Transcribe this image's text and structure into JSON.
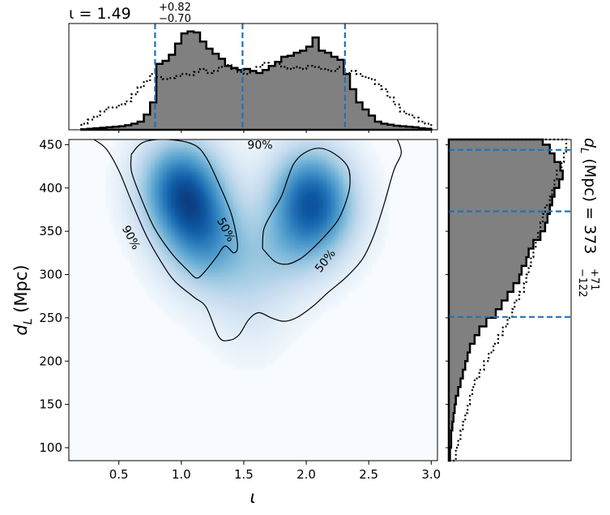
{
  "chart_data": [
    {
      "panel": "top-marginal",
      "type": "step-histogram",
      "title": {
        "symbol": "ι",
        "eq": " = ",
        "value": "1.49",
        "upper": "+0.82",
        "lower": "−0.70"
      },
      "xlim": [
        0.1,
        3.05
      ],
      "bin_edges": [
        0.2,
        0.25,
        0.3,
        0.35,
        0.4,
        0.45,
        0.5,
        0.55,
        0.6,
        0.65,
        0.7,
        0.75,
        0.8,
        0.85,
        0.9,
        0.95,
        1.0,
        1.05,
        1.1,
        1.15,
        1.2,
        1.25,
        1.3,
        1.35,
        1.4,
        1.45,
        1.5,
        1.55,
        1.6,
        1.65,
        1.7,
        1.75,
        1.8,
        1.85,
        1.9,
        1.95,
        2.0,
        2.05,
        2.1,
        2.15,
        2.2,
        2.25,
        2.3,
        2.35,
        2.4,
        2.45,
        2.5,
        2.55,
        2.6,
        2.65,
        2.7,
        2.75,
        2.8,
        2.85,
        2.9,
        2.95,
        3.0
      ],
      "series": [
        {
          "style": "filled-gray",
          "values": [
            0.005,
            0.01,
            0.015,
            0.02,
            0.025,
            0.03,
            0.035,
            0.045,
            0.06,
            0.08,
            0.15,
            0.27,
            0.65,
            0.68,
            0.74,
            0.85,
            0.95,
            0.97,
            0.96,
            0.87,
            0.8,
            0.75,
            0.7,
            0.63,
            0.61,
            0.59,
            0.6,
            0.58,
            0.56,
            0.59,
            0.63,
            0.67,
            0.72,
            0.73,
            0.76,
            0.78,
            0.82,
            0.91,
            0.78,
            0.76,
            0.72,
            0.69,
            0.55,
            0.4,
            0.27,
            0.2,
            0.14,
            0.08,
            0.06,
            0.05,
            0.04,
            0.035,
            0.03,
            0.025,
            0.015,
            0.01
          ]
        },
        {
          "style": "dotted-black",
          "values": [
            0.06,
            0.1,
            0.13,
            0.18,
            0.22,
            0.22,
            0.25,
            0.28,
            0.35,
            0.42,
            0.48,
            0.55,
            0.52,
            0.5,
            0.51,
            0.53,
            0.55,
            0.54,
            0.57,
            0.6,
            0.56,
            0.58,
            0.62,
            0.64,
            0.6,
            0.57,
            0.55,
            0.58,
            0.62,
            0.66,
            0.63,
            0.65,
            0.62,
            0.6,
            0.62,
            0.6,
            0.63,
            0.62,
            0.6,
            0.59,
            0.58,
            0.62,
            0.56,
            0.58,
            0.55,
            0.52,
            0.5,
            0.45,
            0.4,
            0.32,
            0.25,
            0.18,
            0.15,
            0.12,
            0.08,
            0.06
          ]
        }
      ],
      "quantiles": [
        0.79,
        1.49,
        2.31
      ],
      "quantile_color": "#2271b5"
    },
    {
      "panel": "joint-density",
      "type": "heatmap",
      "xlabel": "ι",
      "ylabel": "d_L (Mpc)",
      "xlim": [
        0.1,
        3.05
      ],
      "ylim": [
        85,
        456
      ],
      "xticks": [
        0.5,
        1.0,
        1.5,
        2.0,
        2.5,
        3.0
      ],
      "xtick_labels": [
        "0.5",
        "1.0",
        "1.5",
        "2.0",
        "2.5",
        "3.0"
      ],
      "yticks": [
        100,
        150,
        200,
        250,
        300,
        350,
        400,
        450
      ],
      "ytick_labels": [
        "100",
        "150",
        "200",
        "250",
        "300",
        "350",
        "400",
        "450"
      ],
      "colormap": "Blues",
      "density_peaks": [
        {
          "iota": 0.98,
          "dL": 405,
          "weight": 1.0
        },
        {
          "iota": 1.12,
          "dL": 365,
          "weight": 0.75
        },
        {
          "iota": 1.22,
          "dL": 325,
          "weight": 0.4
        },
        {
          "iota": 2.02,
          "dL": 398,
          "weight": 0.78
        },
        {
          "iota": 2.1,
          "dL": 370,
          "weight": 0.6
        },
        {
          "iota": 1.88,
          "dL": 335,
          "weight": 0.35
        },
        {
          "iota": 1.55,
          "dL": 310,
          "weight": 0.22
        },
        {
          "iota": 1.55,
          "dL": 255,
          "weight": 0.12
        }
      ],
      "contours": [
        {
          "level_label": "50%",
          "paths": [
            [
              [
                0.6,
                439
              ],
              [
                0.7,
                453
              ],
              [
                0.9,
                456
              ],
              [
                1.1,
                450
              ],
              [
                1.2,
                435
              ],
              [
                1.3,
                405
              ],
              [
                1.4,
                370
              ],
              [
                1.45,
                335
              ],
              [
                1.42,
                325
              ],
              [
                1.35,
                333
              ],
              [
                1.28,
                320
              ],
              [
                1.18,
                302
              ],
              [
                1.12,
                296
              ],
              [
                1.05,
                305
              ],
              [
                0.92,
                325
              ],
              [
                0.78,
                355
              ],
              [
                0.66,
                395
              ],
              [
                0.6,
                420
              ],
              [
                0.6,
                439
              ]
            ],
            [
              [
                1.65,
                330
              ],
              [
                1.75,
                315
              ],
              [
                1.85,
                312
              ],
              [
                1.95,
                318
              ],
              [
                2.02,
                326
              ],
              [
                2.12,
                340
              ],
              [
                2.25,
                362
              ],
              [
                2.32,
                385
              ],
              [
                2.35,
                405
              ],
              [
                2.33,
                425
              ],
              [
                2.22,
                440
              ],
              [
                2.1,
                446
              ],
              [
                1.98,
                440
              ],
              [
                1.9,
                428
              ],
              [
                1.85,
                410
              ],
              [
                1.8,
                390
              ],
              [
                1.72,
                370
              ],
              [
                1.66,
                352
              ],
              [
                1.65,
                330
              ]
            ]
          ],
          "labels": [
            {
              "text": "50%",
              "iota": 1.36,
              "dL": 352,
              "angle": 62
            },
            {
              "text": "50%",
              "iota": 2.15,
              "dL": 316,
              "angle": -52
            }
          ]
        },
        {
          "level_label": "90%",
          "paths": [
            [
              [
                0.3,
                456
              ],
              [
                0.4,
                445
              ],
              [
                0.5,
                420
              ],
              [
                0.6,
                385
              ],
              [
                0.72,
                345
              ],
              [
                0.85,
                312
              ],
              [
                0.95,
                292
              ],
              [
                1.1,
                274
              ],
              [
                1.2,
                262
              ],
              [
                1.3,
                228
              ],
              [
                1.38,
                224
              ],
              [
                1.46,
                230
              ],
              [
                1.54,
                248
              ],
              [
                1.62,
                256
              ],
              [
                1.72,
                250
              ],
              [
                1.82,
                246
              ],
              [
                1.92,
                250
              ],
              [
                2.05,
                263
              ],
              [
                2.18,
                280
              ],
              [
                2.32,
                297
              ],
              [
                2.45,
                318
              ],
              [
                2.54,
                345
              ],
              [
                2.62,
                380
              ],
              [
                2.7,
                420
              ],
              [
                2.76,
                440
              ],
              [
                2.73,
                456
              ]
            ]
          ],
          "labels": [
            {
              "text": "90%",
              "iota": 1.63,
              "dL": 450,
              "angle": 0
            },
            {
              "text": "90%",
              "iota": 0.6,
              "dL": 343,
              "angle": 62
            }
          ]
        }
      ]
    },
    {
      "panel": "right-marginal",
      "type": "step-histogram",
      "orientation": "horizontal",
      "title": {
        "symbol": "d",
        "sub": "L",
        "rest": " (Mpc) = 373",
        "upper": "+71",
        "lower": "−122"
      },
      "bin_edges": [
        85,
        100,
        110,
        120,
        130,
        140,
        150,
        160,
        170,
        180,
        190,
        200,
        210,
        220,
        230,
        240,
        250,
        260,
        270,
        280,
        290,
        300,
        310,
        320,
        330,
        340,
        350,
        360,
        370,
        380,
        390,
        400,
        410,
        420,
        430,
        440,
        450,
        456
      ],
      "series": [
        {
          "style": "filled-gray",
          "values": [
            0.01,
            0.02,
            0.02,
            0.03,
            0.04,
            0.05,
            0.06,
            0.08,
            0.1,
            0.12,
            0.14,
            0.16,
            0.18,
            0.22,
            0.26,
            0.32,
            0.4,
            0.45,
            0.5,
            0.55,
            0.6,
            0.62,
            0.66,
            0.68,
            0.72,
            0.78,
            0.82,
            0.84,
            0.86,
            0.88,
            0.9,
            0.94,
            0.97,
            0.95,
            0.9,
            0.86,
            0.8
          ]
        },
        {
          "style": "dotted-black",
          "values": [
            0.06,
            0.08,
            0.1,
            0.12,
            0.14,
            0.16,
            0.18,
            0.2,
            0.22,
            0.26,
            0.3,
            0.34,
            0.38,
            0.42,
            0.46,
            0.5,
            0.54,
            0.56,
            0.6,
            0.64,
            0.66,
            0.68,
            0.7,
            0.72,
            0.74,
            0.76,
            0.78,
            0.8,
            0.82,
            0.86,
            0.88,
            0.9,
            0.92,
            0.96,
            0.98,
            1.0,
            1.0
          ]
        }
      ],
      "quantiles": [
        251,
        373,
        444
      ],
      "quantile_color": "#2271b5"
    }
  ]
}
